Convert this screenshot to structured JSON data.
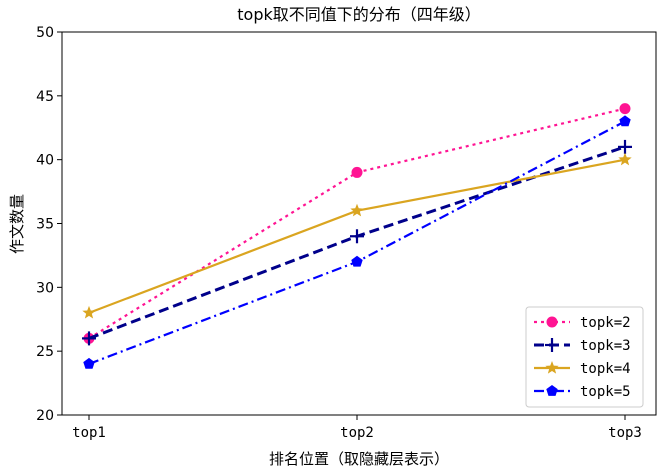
{
  "chart_data": {
    "type": "line",
    "title": "topk取不同值下的分布（四年级）",
    "xlabel": "排名位置（取隐藏层表示）",
    "ylabel": "作文数量",
    "categories": [
      "top1",
      "top2",
      "top3"
    ],
    "ylim": [
      20,
      50
    ],
    "yticks": [
      20,
      25,
      30,
      35,
      40,
      45,
      50
    ],
    "grid": false,
    "legend_position": "lower-right",
    "series": [
      {
        "name": "topk=2",
        "values": [
          26,
          39,
          44
        ],
        "color": "#ff1493",
        "dash": "3,4",
        "marker": "circle"
      },
      {
        "name": "topk=3",
        "values": [
          26,
          34,
          41
        ],
        "color": "#00008b",
        "dash": "10,5",
        "marker": "plus"
      },
      {
        "name": "topk=4",
        "values": [
          28,
          36,
          40
        ],
        "color": "#daa520",
        "dash": "",
        "marker": "star"
      },
      {
        "name": "topk=5",
        "values": [
          24,
          32,
          43
        ],
        "color": "#0000ff",
        "dash": "10,4,2,4",
        "marker": "pentagon"
      }
    ]
  }
}
